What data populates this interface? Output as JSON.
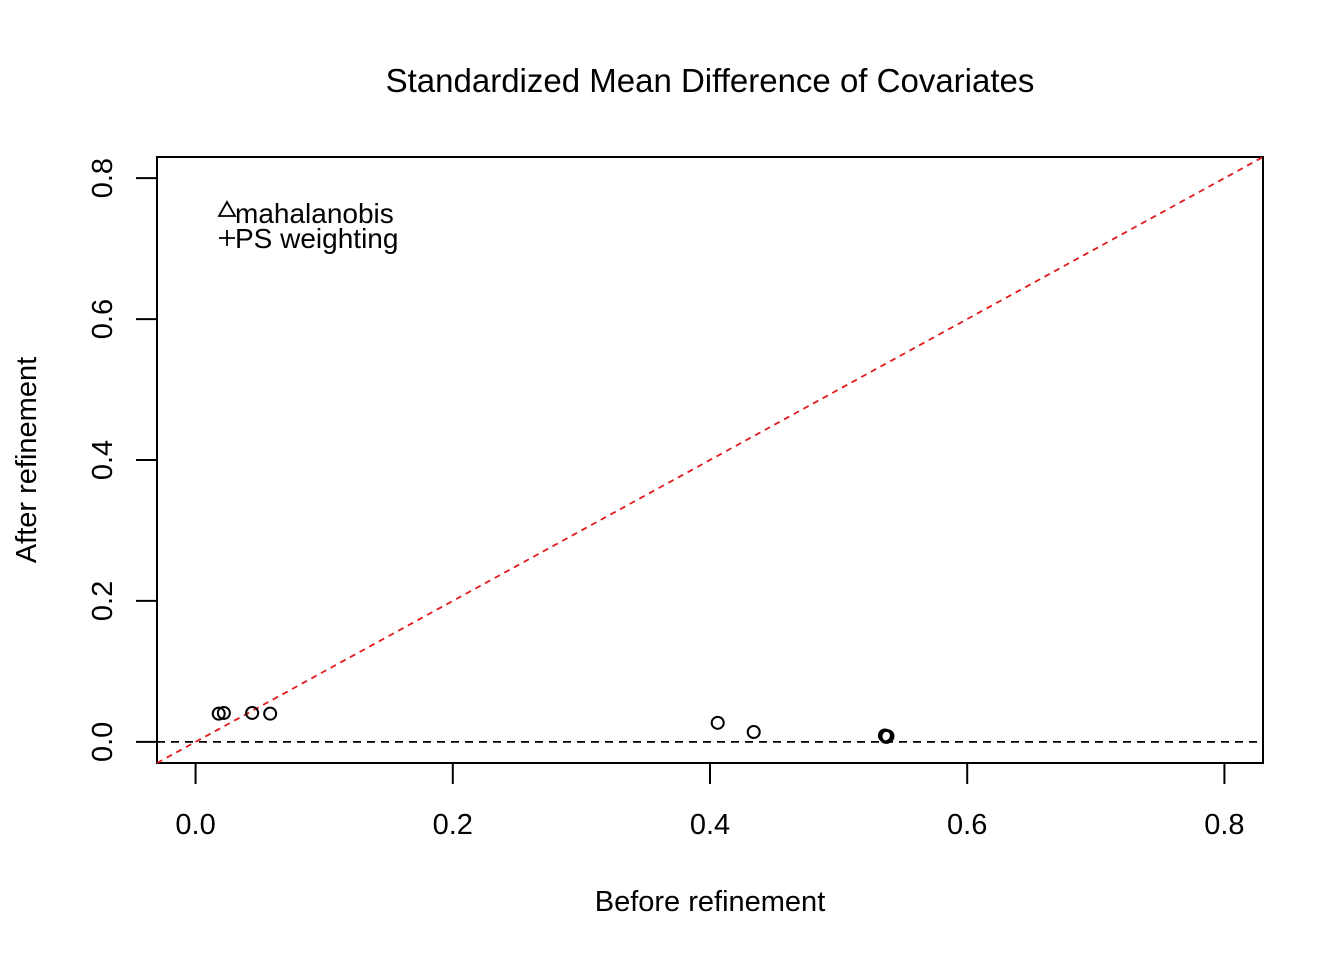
{
  "chart_data": {
    "type": "scatter",
    "title": "Standardized Mean Difference of Covariates",
    "xlabel": "Before refinement",
    "ylabel": "After refinement",
    "xlim": [
      -0.03,
      0.83
    ],
    "ylim": [
      -0.03,
      0.83
    ],
    "x_ticks": [
      "0.0",
      "0.2",
      "0.4",
      "0.6",
      "0.8"
    ],
    "y_ticks": [
      "0.0",
      "0.2",
      "0.4",
      "0.6",
      "0.8"
    ],
    "grid": false,
    "legend_position": "top-left",
    "legend": [
      {
        "label": "mahalanobis",
        "symbol": "triangle"
      },
      {
        "label": "PS weighting",
        "symbol": "plus"
      }
    ],
    "reference_lines": [
      {
        "type": "identity",
        "style": "dashed",
        "color": "#e31a1c"
      },
      {
        "type": "horizontal",
        "y": 0,
        "style": "dashed",
        "color": "#000000"
      }
    ],
    "points": [
      {
        "x": 0.018,
        "y": 0.04
      },
      {
        "x": 0.022,
        "y": 0.041
      },
      {
        "x": 0.044,
        "y": 0.041
      },
      {
        "x": 0.058,
        "y": 0.04
      },
      {
        "x": 0.406,
        "y": 0.027
      },
      {
        "x": 0.434,
        "y": 0.014
      },
      {
        "x": 0.536,
        "y": 0.009
      },
      {
        "x": 0.537,
        "y": 0.007
      },
      {
        "x": 0.538,
        "y": 0.008
      }
    ],
    "marker": "open-circle"
  }
}
